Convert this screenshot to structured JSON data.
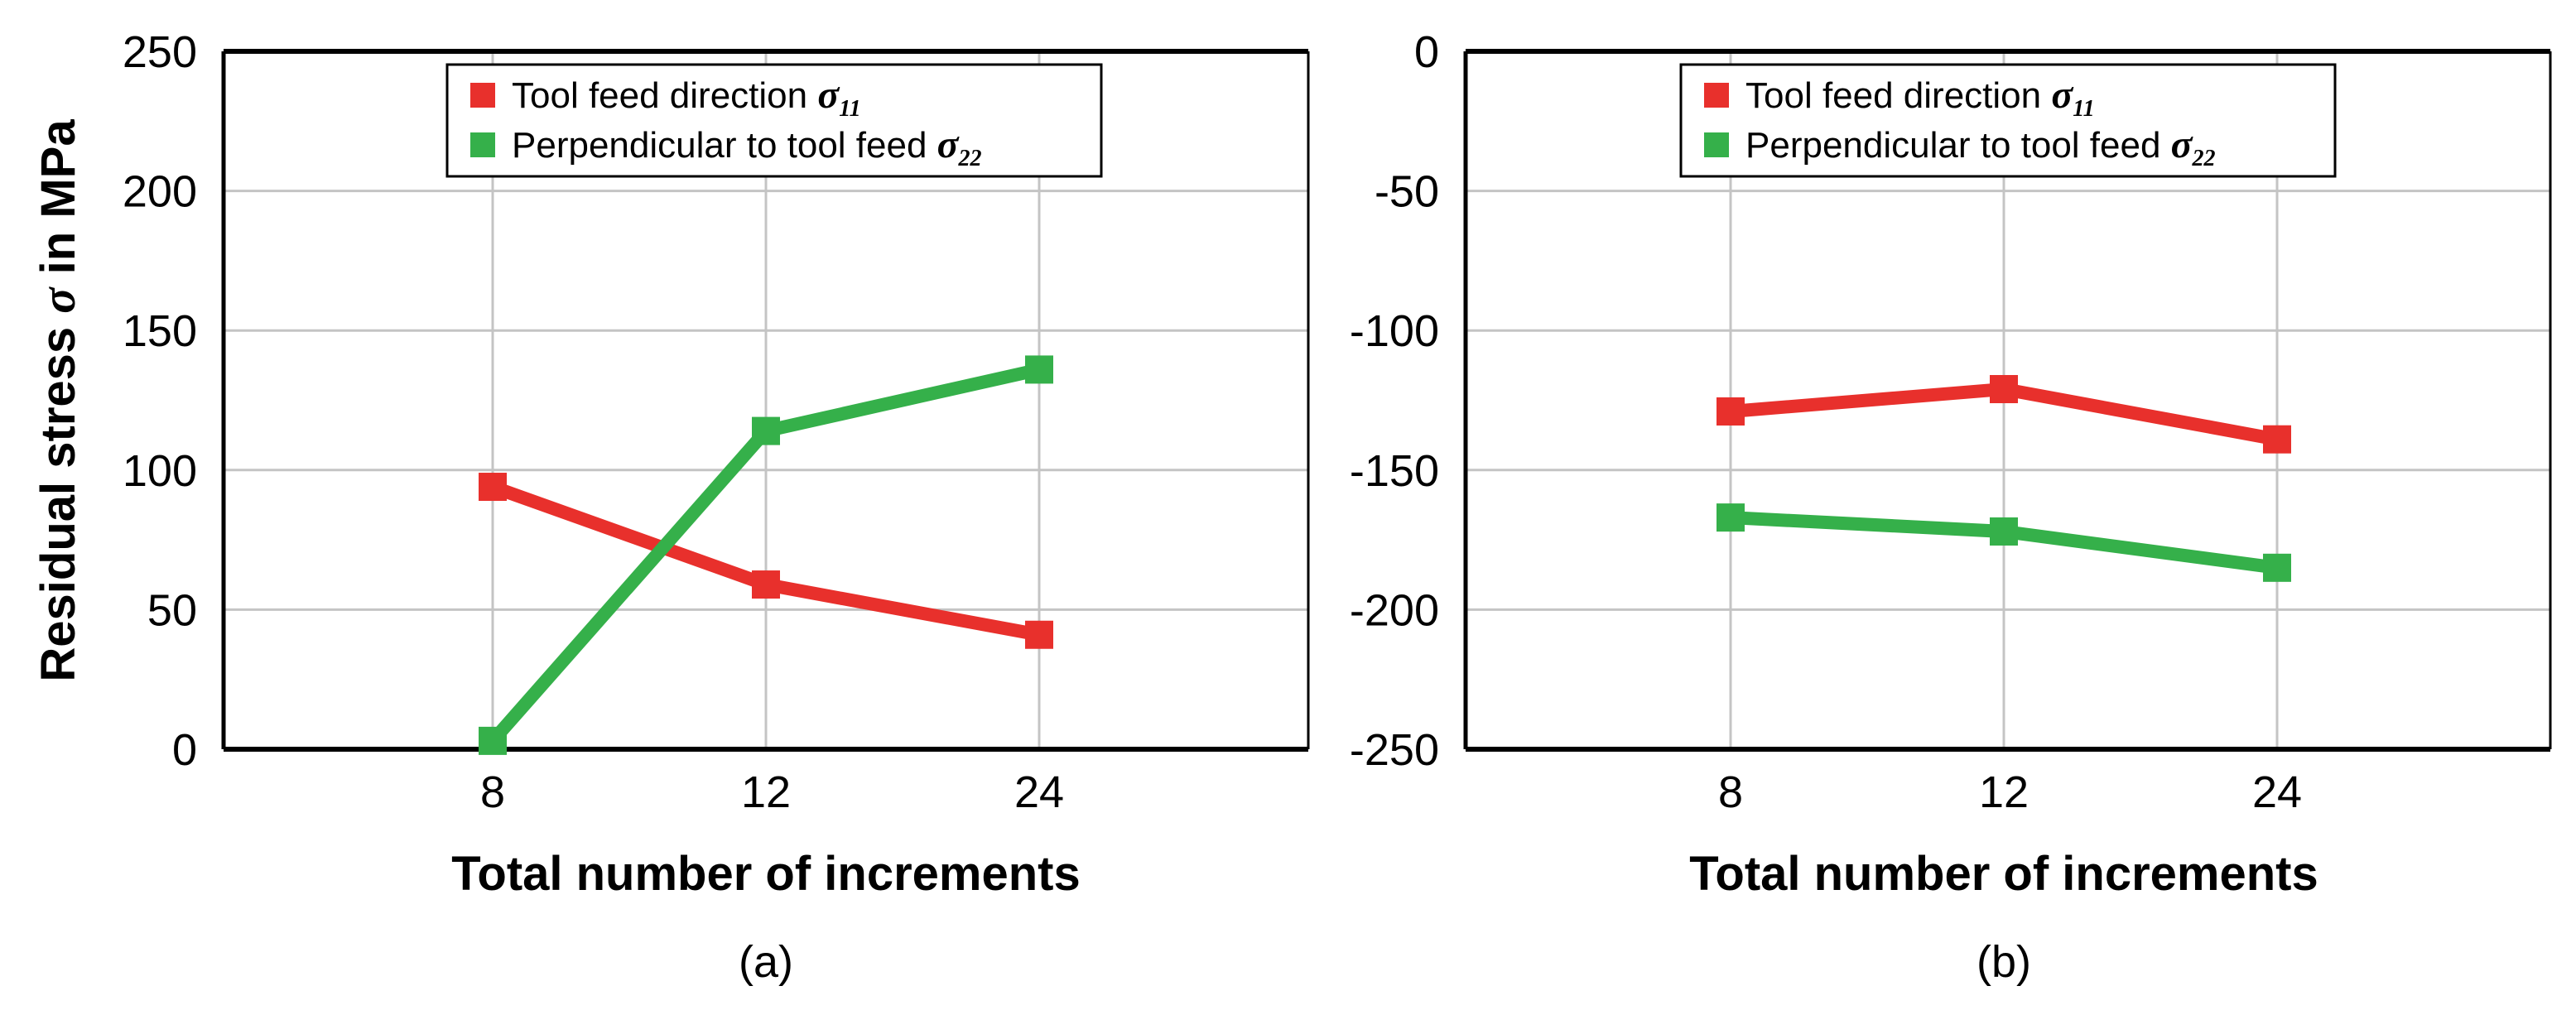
{
  "colors": {
    "series_feed": "#e8302c",
    "series_perp": "#35b04a",
    "grid": "#c4c4c4",
    "axis": "#000000"
  },
  "chart_data": [
    {
      "type": "line",
      "panel_caption": "(a)",
      "title": "",
      "xlabel": "Total number of increments",
      "ylabel": "Residual stress σ in MPa",
      "ylabel_parts": {
        "before": "Residual stress ",
        "symbol": "σ",
        "after": " in MPa"
      },
      "categories": [
        "8",
        "12",
        "24"
      ],
      "ylim": [
        0,
        250
      ],
      "yticks": [
        0,
        50,
        100,
        150,
        200,
        250
      ],
      "grid": true,
      "legend_position": "top-center",
      "series": [
        {
          "name": "Tool feed direction σ11",
          "label": "Tool feed direction ",
          "symbol": "σ",
          "subscript": "11",
          "color_key": "series_feed",
          "values": [
            94,
            59,
            41
          ]
        },
        {
          "name": "Perpendicular to tool feed σ22",
          "label": "Perpendicular to tool feed ",
          "symbol": "σ",
          "subscript": "22",
          "color_key": "series_perp",
          "values": [
            3,
            114,
            136
          ]
        }
      ]
    },
    {
      "type": "line",
      "panel_caption": "(b)",
      "title": "",
      "xlabel": "Total number of increments",
      "ylabel": "",
      "categories": [
        "8",
        "12",
        "24"
      ],
      "ylim": [
        -250,
        0
      ],
      "yticks": [
        0,
        -50,
        -100,
        -150,
        -200,
        -250
      ],
      "grid": true,
      "legend_position": "top-center",
      "series": [
        {
          "name": "Tool feed direction σ11",
          "label": "Tool feed direction ",
          "symbol": "σ",
          "subscript": "11",
          "color_key": "series_feed",
          "values": [
            -129,
            -121,
            -139
          ]
        },
        {
          "name": "Perpendicular to tool feed σ22",
          "label": "Perpendicular to tool feed ",
          "symbol": "σ",
          "subscript": "22",
          "color_key": "series_perp",
          "values": [
            -167,
            -172,
            -185
          ]
        }
      ]
    }
  ]
}
